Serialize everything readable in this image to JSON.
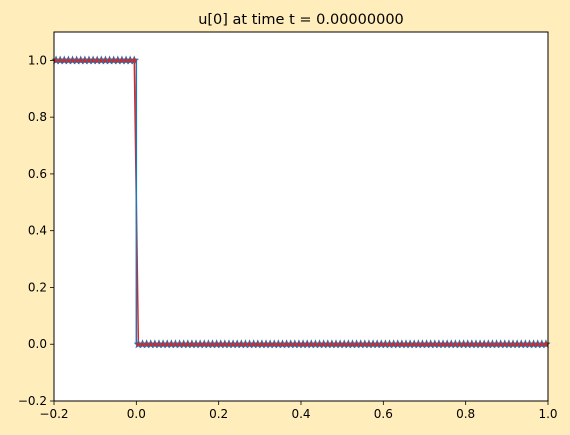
{
  "chart_data": {
    "type": "line",
    "title": "u[0] at time t =      0.00000000",
    "xlabel": "",
    "ylabel": "",
    "xlim": [
      -0.2,
      1.0
    ],
    "ylim": [
      -0.2,
      1.1
    ],
    "xticks": [
      -0.2,
      0.0,
      0.2,
      0.4,
      0.6,
      0.8,
      1.0
    ],
    "xtick_labels": [
      "−0.2",
      "0.0",
      "0.2",
      "0.4",
      "0.6",
      "0.8",
      "1.0"
    ],
    "yticks": [
      -0.2,
      0.0,
      0.2,
      0.4,
      0.6,
      0.8,
      1.0
    ],
    "ytick_labels": [
      "−0.2",
      "0.0",
      "0.2",
      "0.4",
      "0.6",
      "0.8",
      "1.0"
    ],
    "grid": false,
    "series": [
      {
        "style": "red-line-with-star-markers",
        "color": "#e8201f",
        "marker": "star",
        "marker_color": "#d62728",
        "x_start": -0.195,
        "x_step": 0.01,
        "x_count": 120,
        "jump_between": [
          -0.005,
          0.005
        ],
        "y_left": 1.0,
        "y_right": 0.0
      },
      {
        "style": "step",
        "color": "#1f77b4",
        "x": [
          -0.2,
          0.0,
          0.0,
          1.0
        ],
        "y": [
          1.0,
          1.0,
          0.0,
          0.0
        ]
      }
    ]
  }
}
